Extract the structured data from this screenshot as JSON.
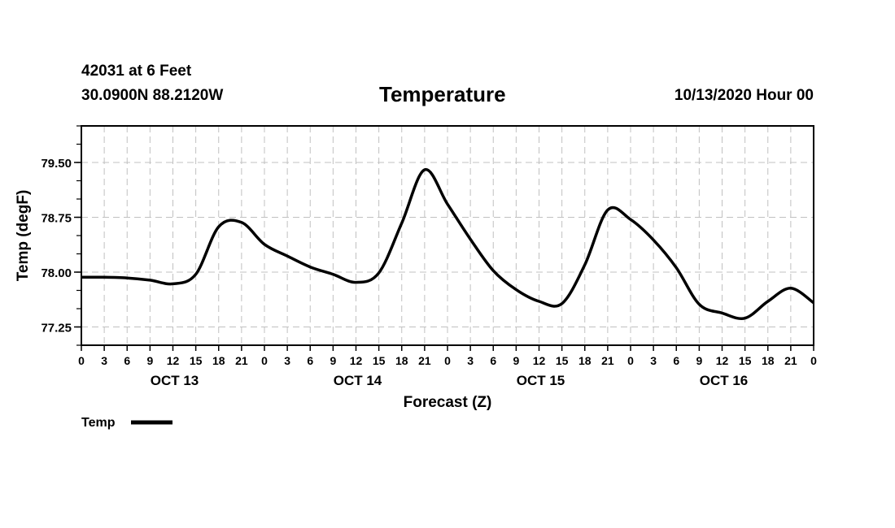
{
  "header": {
    "station": "42031 at 6 Feet",
    "location": "30.0900N 88.2120W",
    "title": "Temperature",
    "run": "10/13/2020 Hour 00"
  },
  "chart_data": {
    "type": "line",
    "title": "Temperature",
    "xlabel": "Forecast (Z)",
    "ylabel": "Temp (degF)",
    "xlim": [
      0,
      96
    ],
    "ylim": [
      77.0,
      80.0
    ],
    "yticks": [
      77.25,
      78.0,
      78.75,
      79.5
    ],
    "ytick_labels": [
      "77.25",
      "78.00",
      "78.75",
      "79.50"
    ],
    "xtick_labels": [
      "0",
      "3",
      "6",
      "9",
      "12",
      "15",
      "18",
      "21",
      "0",
      "3",
      "6",
      "9",
      "12",
      "15",
      "18",
      "21",
      "0",
      "3",
      "6",
      "9",
      "12",
      "15",
      "18",
      "21",
      "0",
      "3",
      "6",
      "9",
      "12",
      "15",
      "18",
      "21",
      "0"
    ],
    "day_labels": [
      {
        "label": "OCT 13",
        "hour": 12
      },
      {
        "label": "OCT 14",
        "hour": 36
      },
      {
        "label": "OCT 15",
        "hour": 60
      },
      {
        "label": "OCT 16",
        "hour": 84
      }
    ],
    "grid": true,
    "legend": "bottom-left",
    "series": [
      {
        "name": "Temp",
        "color": "#000000",
        "x": [
          0,
          3,
          6,
          9,
          12,
          15,
          18,
          21,
          24,
          27,
          30,
          33,
          36,
          39,
          42,
          45,
          48,
          51,
          54,
          57,
          60,
          63,
          66,
          69,
          72,
          75,
          78,
          81,
          84,
          87,
          90,
          93,
          96
        ],
        "values": [
          77.93,
          77.93,
          77.92,
          77.89,
          77.84,
          77.97,
          78.62,
          78.68,
          78.38,
          78.22,
          78.07,
          77.97,
          77.86,
          77.99,
          78.67,
          79.4,
          78.93,
          78.45,
          78.02,
          77.76,
          77.6,
          77.57,
          78.1,
          78.85,
          78.72,
          78.44,
          78.06,
          77.56,
          77.44,
          77.37,
          77.6,
          77.78,
          77.58
        ]
      }
    ]
  }
}
